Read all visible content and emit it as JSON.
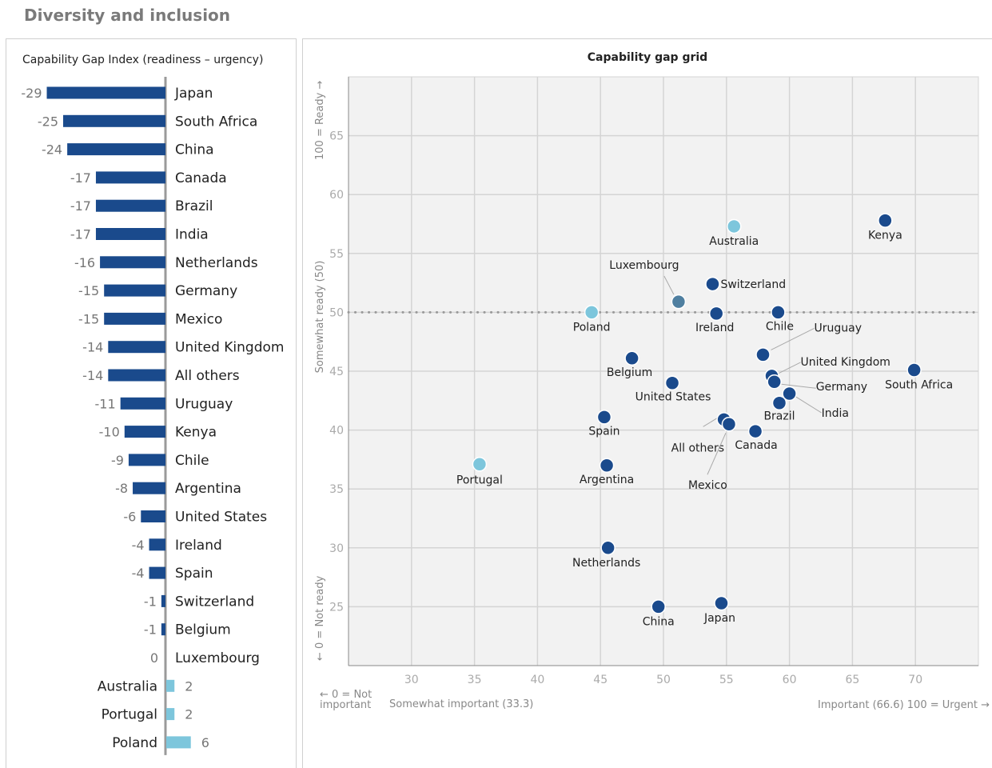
{
  "page": {
    "title": "Diversity and inclusion"
  },
  "left_panel": {
    "title": "Capability Gap Index (readiness – urgency)"
  },
  "right_panel": {
    "title": "Capability gap grid",
    "y_axis_top_label": "100 = Ready →",
    "y_axis_mid_label": "Somewhat ready (50)",
    "y_axis_bottom_label": "← 0 = Not ready",
    "x_axis_left_label_line1": "← 0 = Not",
    "x_axis_left_label_line2": "important",
    "x_axis_somewhat_label": "Somewhat important (33.3)",
    "x_axis_right_label": "Important (66.6)  100 = Urgent →"
  },
  "colors": {
    "dark": "#1a4a8c",
    "light": "#7dc6dc",
    "mid": "#4f7fa0",
    "axis": "#999999",
    "grid": "#d4d4d4",
    "plot_bg": "#f2f2f2"
  },
  "chart_data": [
    {
      "type": "bar",
      "orientation": "horizontal",
      "title": "Capability Gap Index (readiness – urgency)",
      "categories": [
        "Japan",
        "South Africa",
        "China",
        "Canada",
        "Brazil",
        "India",
        "Netherlands",
        "Germany",
        "Mexico",
        "United Kingdom",
        "All others",
        "Uruguay",
        "Kenya",
        "Chile",
        "Argentina",
        "United States",
        "Ireland",
        "Spain",
        "Switzerland",
        "Belgium",
        "Luxembourg",
        "Australia",
        "Portugal",
        "Poland"
      ],
      "values": [
        -29,
        -25,
        -24,
        -17,
        -17,
        -17,
        -16,
        -15,
        -15,
        -14,
        -14,
        -11,
        -10,
        -9,
        -8,
        -6,
        -4,
        -4,
        -1,
        -1,
        0,
        2,
        2,
        6
      ]
    },
    {
      "type": "scatter",
      "title": "Capability gap grid",
      "xlim": [
        25,
        75
      ],
      "ylim": [
        20,
        70
      ],
      "x_ticks": [
        30,
        35,
        40,
        45,
        50,
        55,
        60,
        65,
        70
      ],
      "y_ticks": [
        25,
        30,
        35,
        40,
        45,
        50,
        55,
        60,
        65
      ],
      "reference_line_y": 50,
      "grid": true,
      "points": [
        {
          "label": "Kenya",
          "x": 67.6,
          "y": 57.8,
          "color": "dark"
        },
        {
          "label": "Australia",
          "x": 55.6,
          "y": 57.3,
          "color": "light"
        },
        {
          "label": "Switzerland",
          "x": 53.9,
          "y": 52.4,
          "color": "dark"
        },
        {
          "label": "Luxembourg",
          "x": 51.2,
          "y": 50.9,
          "color": "mid"
        },
        {
          "label": "Poland",
          "x": 44.3,
          "y": 50.0,
          "color": "light"
        },
        {
          "label": "Ireland",
          "x": 54.2,
          "y": 49.9,
          "color": "dark"
        },
        {
          "label": "Chile",
          "x": 59.1,
          "y": 50.0,
          "color": "dark"
        },
        {
          "label": "Uruguay",
          "x": 57.9,
          "y": 46.4,
          "color": "dark"
        },
        {
          "label": "Belgium",
          "x": 47.5,
          "y": 46.1,
          "color": "dark"
        },
        {
          "label": "United Kingdom",
          "x": 58.6,
          "y": 44.6,
          "color": "dark"
        },
        {
          "label": "Germany",
          "x": 58.8,
          "y": 44.1,
          "color": "dark"
        },
        {
          "label": "South Africa",
          "x": 69.9,
          "y": 45.1,
          "color": "dark"
        },
        {
          "label": "United States",
          "x": 50.7,
          "y": 44.0,
          "color": "dark"
        },
        {
          "label": "India",
          "x": 60.0,
          "y": 43.1,
          "color": "dark"
        },
        {
          "label": "Brazil",
          "x": 59.2,
          "y": 42.3,
          "color": "dark"
        },
        {
          "label": "Spain",
          "x": 45.3,
          "y": 41.1,
          "color": "dark"
        },
        {
          "label": "All others",
          "x": 54.8,
          "y": 40.9,
          "color": "dark"
        },
        {
          "label": "Mexico",
          "x": 55.2,
          "y": 40.5,
          "color": "dark"
        },
        {
          "label": "Canada",
          "x": 57.3,
          "y": 39.9,
          "color": "dark"
        },
        {
          "label": "Portugal",
          "x": 35.4,
          "y": 37.1,
          "color": "light"
        },
        {
          "label": "Argentina",
          "x": 45.5,
          "y": 37.0,
          "color": "dark"
        },
        {
          "label": "Netherlands",
          "x": 45.6,
          "y": 30.0,
          "color": "dark"
        },
        {
          "label": "China",
          "x": 49.6,
          "y": 25.0,
          "color": "dark"
        },
        {
          "label": "Japan",
          "x": 54.6,
          "y": 25.3,
          "color": "dark"
        }
      ]
    }
  ]
}
